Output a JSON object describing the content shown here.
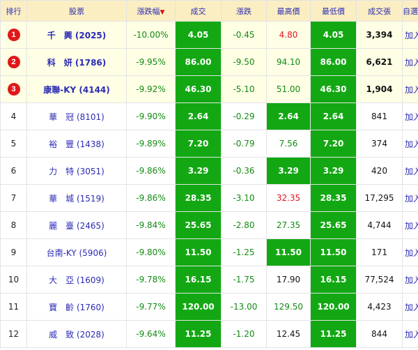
{
  "headers": {
    "rank": "排行",
    "stock": "股票",
    "change_pct": "漲跌幅",
    "sort_arrow": "▼",
    "price": "成交",
    "change": "漲跌",
    "high": "最高價",
    "low": "最低價",
    "volume": "成交張",
    "watchlist": "自選股"
  },
  "add_label": "加入",
  "colors": {
    "limit_down_bg": "#13a813",
    "down_text": "#138a13",
    "up_text": "#e0141e",
    "link": "#2b2bb5"
  },
  "rows": [
    {
      "rank": "1",
      "name": "千　興 (2025)",
      "change_pct": "-10.00%",
      "price": "4.05",
      "change": "-0.45",
      "high": "4.80",
      "low": "4.05",
      "volume": "3,394"
    },
    {
      "rank": "2",
      "name": "科　妍 (1786)",
      "change_pct": "-9.95%",
      "price": "86.00",
      "change": "-9.50",
      "high": "94.10",
      "low": "86.00",
      "volume": "6,621"
    },
    {
      "rank": "3",
      "name": "康聯-KY (4144)",
      "change_pct": "-9.92%",
      "price": "46.30",
      "change": "-5.10",
      "high": "51.00",
      "low": "46.30",
      "volume": "1,904"
    },
    {
      "rank": "4",
      "name": "華　冠 (8101)",
      "change_pct": "-9.90%",
      "price": "2.64",
      "change": "-0.29",
      "high": "2.64",
      "low": "2.64",
      "volume": "841"
    },
    {
      "rank": "5",
      "name": "裕　豐 (1438)",
      "change_pct": "-9.89%",
      "price": "7.20",
      "change": "-0.79",
      "high": "7.56",
      "low": "7.20",
      "volume": "374"
    },
    {
      "rank": "6",
      "name": "力　特 (3051)",
      "change_pct": "-9.86%",
      "price": "3.29",
      "change": "-0.36",
      "high": "3.29",
      "low": "3.29",
      "volume": "420"
    },
    {
      "rank": "7",
      "name": "華　城 (1519)",
      "change_pct": "-9.86%",
      "price": "28.35",
      "change": "-3.10",
      "high": "32.35",
      "low": "28.35",
      "volume": "17,295"
    },
    {
      "rank": "8",
      "name": "麗　臺 (2465)",
      "change_pct": "-9.84%",
      "price": "25.65",
      "change": "-2.80",
      "high": "27.35",
      "low": "25.65",
      "volume": "4,744"
    },
    {
      "rank": "9",
      "name": "台南-KY (5906)",
      "change_pct": "-9.80%",
      "price": "11.50",
      "change": "-1.25",
      "high": "11.50",
      "low": "11.50",
      "volume": "171"
    },
    {
      "rank": "10",
      "name": "大　亞 (1609)",
      "change_pct": "-9.78%",
      "price": "16.15",
      "change": "-1.75",
      "high": "17.90",
      "low": "16.15",
      "volume": "77,524"
    },
    {
      "rank": "11",
      "name": "寶　齡 (1760)",
      "change_pct": "-9.77%",
      "price": "120.00",
      "change": "-13.00",
      "high": "129.50",
      "low": "120.00",
      "volume": "4,423"
    },
    {
      "rank": "12",
      "name": "威　致 (2028)",
      "change_pct": "-9.64%",
      "price": "11.25",
      "change": "-1.20",
      "high": "12.45",
      "low": "11.25",
      "volume": "844"
    }
  ]
}
